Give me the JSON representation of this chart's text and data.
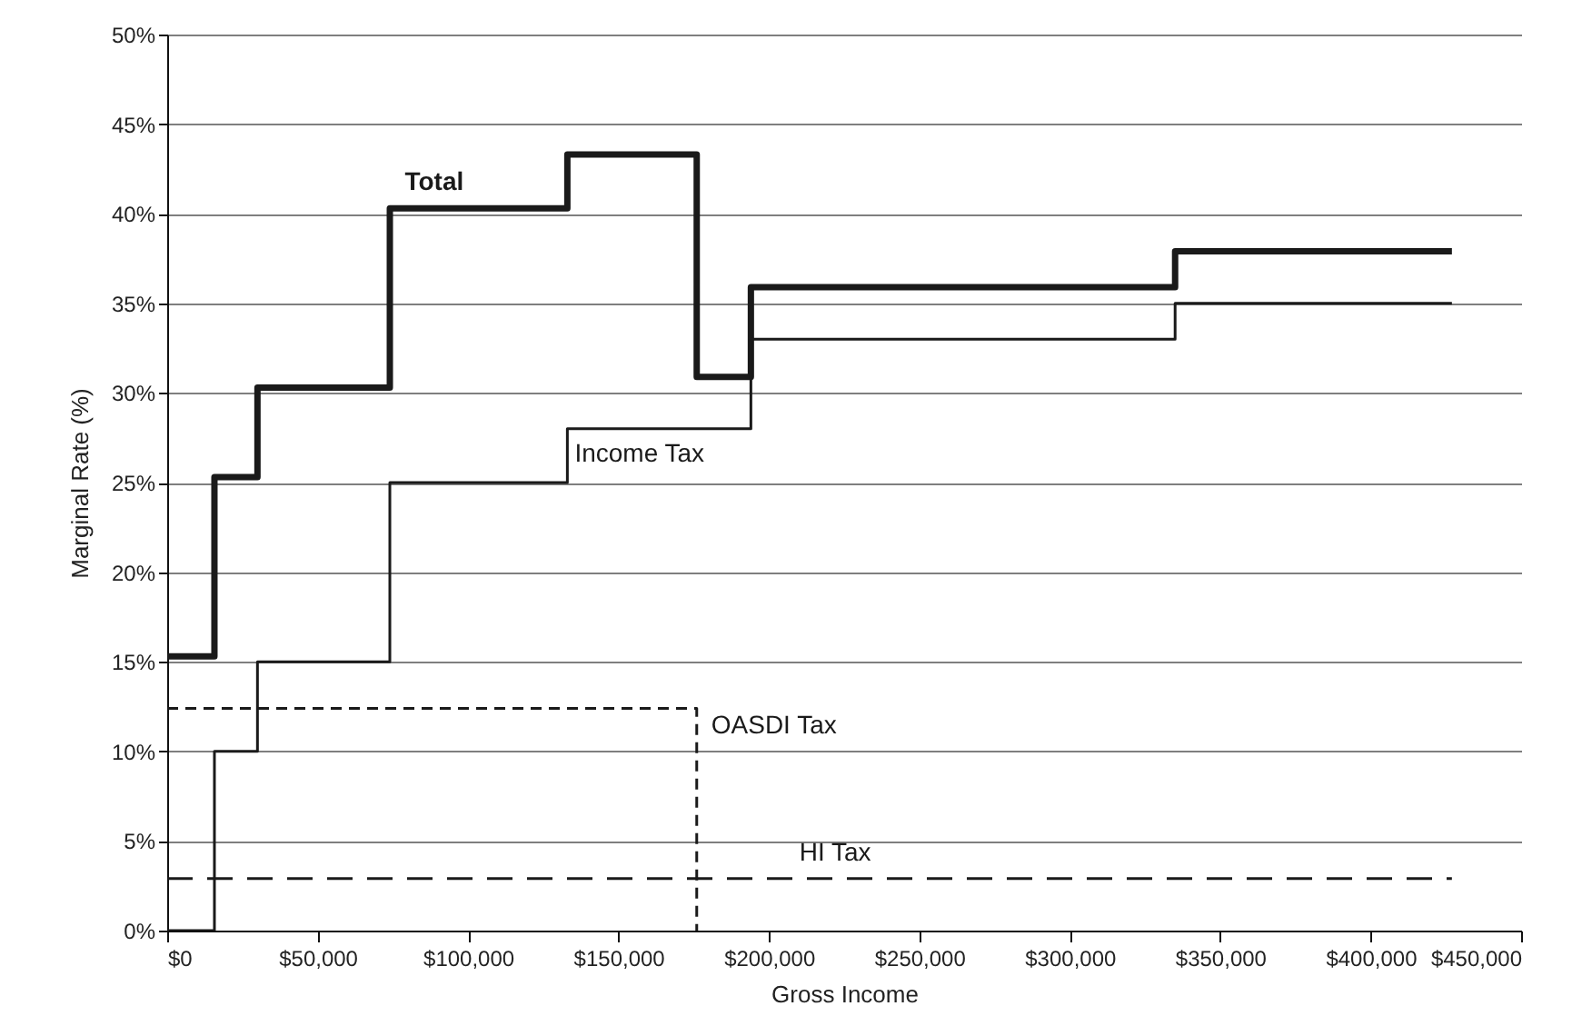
{
  "chart_data": {
    "type": "step",
    "xlabel": "Gross Income",
    "ylabel": "Marginal Rate (%)",
    "xlim": [
      0,
      450000
    ],
    "ylim": [
      0,
      50
    ],
    "xticks": [
      {
        "value": 0,
        "label": "$0"
      },
      {
        "value": 50000,
        "label": "$50,000"
      },
      {
        "value": 100000,
        "label": "$100,000"
      },
      {
        "value": 150000,
        "label": "$150,000"
      },
      {
        "value": 200000,
        "label": "$200,000"
      },
      {
        "value": 250000,
        "label": "$250,000"
      },
      {
        "value": 300000,
        "label": "$300,000"
      },
      {
        "value": 350000,
        "label": "$350,000"
      },
      {
        "value": 400000,
        "label": "$400,000"
      },
      {
        "value": 450000,
        "label": "$450,000"
      }
    ],
    "yticks": [
      {
        "value": 0,
        "label": "0%"
      },
      {
        "value": 5,
        "label": "5%"
      },
      {
        "value": 10,
        "label": "10%"
      },
      {
        "value": 15,
        "label": "15%"
      },
      {
        "value": 20,
        "label": "20%"
      },
      {
        "value": 25,
        "label": "25%"
      },
      {
        "value": 30,
        "label": "30%"
      },
      {
        "value": 35,
        "label": "35%"
      },
      {
        "value": 40,
        "label": "40%"
      },
      {
        "value": 45,
        "label": "45%"
      },
      {
        "value": 50,
        "label": "50%"
      }
    ],
    "grid": "y",
    "series": [
      {
        "name": "Total",
        "color": "#1a1a1a",
        "line_style": "solid",
        "x": [
          0,
          15700,
          30000,
          74000,
          133000,
          176000,
          194000,
          335000,
          427000
        ],
        "values": [
          15.3,
          25.3,
          30.3,
          40.3,
          43.3,
          30.9,
          35.9,
          37.9,
          37.9
        ]
      },
      {
        "name": "Income Tax",
        "color": "#1a1a1a",
        "line_style": "solid",
        "x": [
          0,
          15700,
          30000,
          74000,
          133000,
          194000,
          335000,
          427000
        ],
        "values": [
          0,
          10,
          15,
          25,
          28,
          33,
          35,
          35
        ]
      },
      {
        "name": "OASDI Tax",
        "color": "#1a1a1a",
        "line_style": "dashed",
        "x": [
          0,
          176000
        ],
        "values": [
          12.4,
          0
        ]
      },
      {
        "name": "HI Tax",
        "color": "#1a1a1a",
        "line_style": "dashed",
        "x": [
          0,
          427000
        ],
        "values": [
          2.9,
          2.9
        ]
      }
    ]
  }
}
